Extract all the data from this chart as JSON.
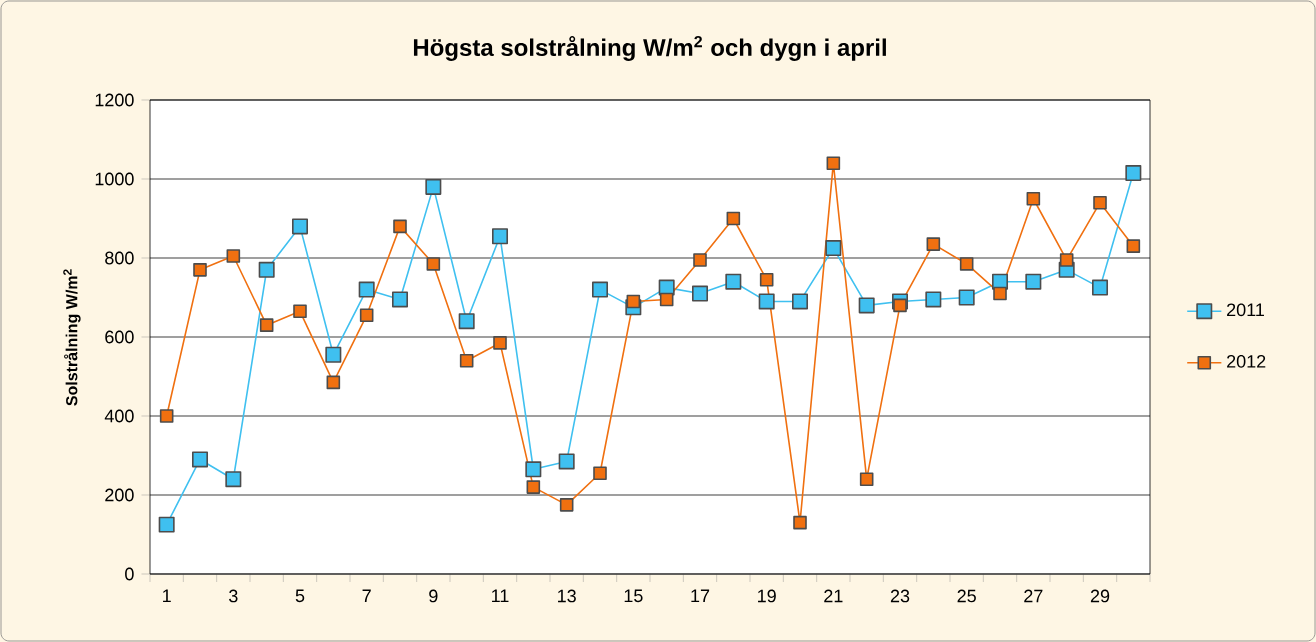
{
  "chart_data": {
    "type": "line",
    "title": "Högsta solstrålning W/m$^{2}$ och dygn i april",
    "ylabel": "**Solstrålning W/m$^{2}$**",
    "categories": [
      "1",
      null,
      "3",
      null,
      "5",
      null,
      "7",
      null,
      "9",
      null,
      "11",
      null,
      "13",
      null,
      "15",
      null,
      "17",
      null,
      "19",
      null,
      "21",
      null,
      "23",
      null,
      "25",
      null,
      "27",
      null,
      "29",
      null
    ],
    "series": [
      {
        "name": "2011",
        "color": "#3fc0f0",
        "values": [
          125,
          290,
          240,
          770,
          880,
          555,
          720,
          695,
          980,
          640,
          855,
          265,
          285,
          720,
          675,
          725,
          710,
          740,
          690,
          690,
          825,
          680,
          690,
          695,
          700,
          740,
          740,
          770,
          725,
          1015
        ]
      },
      {
        "name": "2012",
        "color": "#f07010",
        "values": [
          400,
          770,
          805,
          630,
          665,
          485,
          655,
          880,
          785,
          540,
          585,
          220,
          175,
          255,
          690,
          695,
          795,
          900,
          745,
          130,
          1040,
          240,
          680,
          835,
          785,
          710,
          950,
          795,
          940,
          830
        ]
      }
    ],
    "ylim": [
      0,
      1200
    ],
    "yticks": [
      0,
      200,
      400,
      600,
      800,
      1000,
      1200
    ],
    "grid": "y",
    "legend": "right",
    "marker": "square",
    "line_style": "solid"
  }
}
